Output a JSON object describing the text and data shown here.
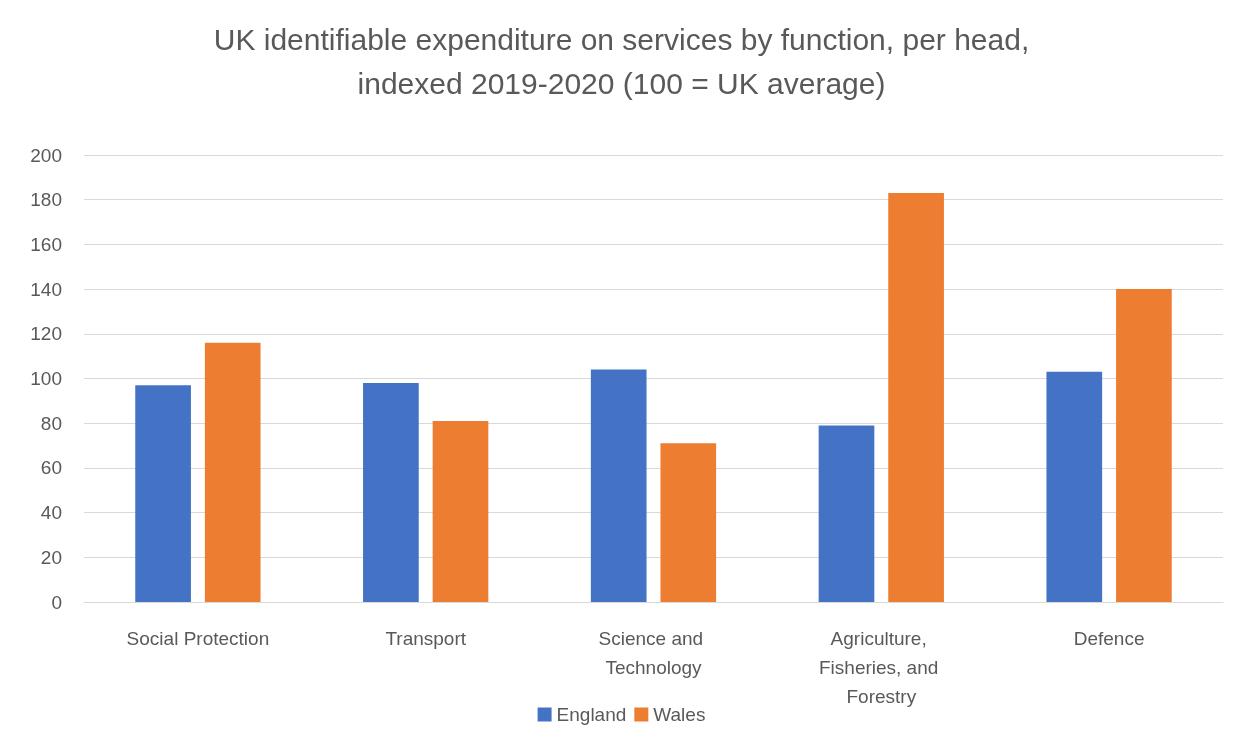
{
  "chart_data": {
    "type": "bar",
    "title": "UK identifiable expenditure on services by function, per head,\nindexed 2019-2020 (100 = UK average)",
    "categories": [
      "Social Protection",
      "Transport",
      "Science and Technology",
      "Agriculture, Fisheries, and Forestry",
      "Defence"
    ],
    "series": [
      {
        "name": "England",
        "color": "#4472c4",
        "values": [
          97,
          98,
          104,
          79,
          103
        ]
      },
      {
        "name": "Wales",
        "color": "#ed7d31",
        "values": [
          116,
          81,
          71,
          183,
          140
        ]
      }
    ],
    "ylim": [
      0,
      200
    ],
    "yticks": [
      0,
      20,
      40,
      60,
      80,
      100,
      120,
      140,
      160,
      180,
      200
    ],
    "grid": "y",
    "legend": "bottom"
  }
}
